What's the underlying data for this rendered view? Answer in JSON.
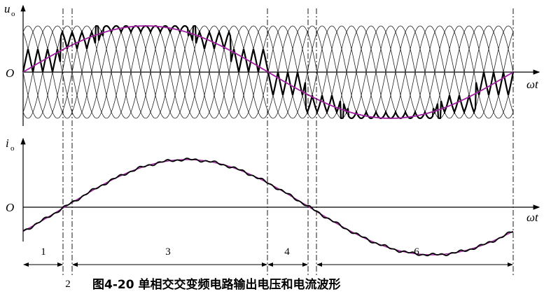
{
  "voltage_panel": {
    "y_label": "u",
    "y_subscript": "o",
    "origin": "O",
    "x_label": "ωt"
  },
  "current_panel": {
    "y_label": "i",
    "y_subscript": "o",
    "origin": "O",
    "x_label": "ωt"
  },
  "intervals": [
    "1",
    "2",
    "3",
    "4",
    "6"
  ],
  "caption": "图4-20  单相交交变频电路输出电压和电流波形"
}
